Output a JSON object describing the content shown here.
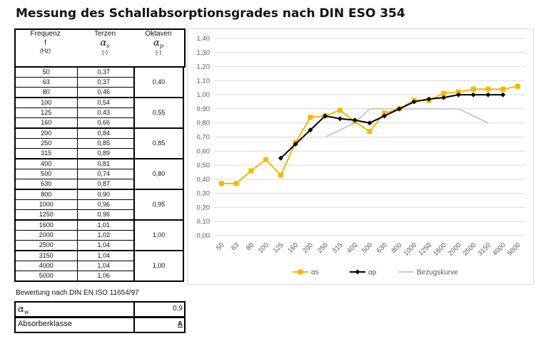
{
  "title": "Messung des Schallabsorptionsgrades nach DIN ESO 354",
  "table": {
    "headers": {
      "col1": [
        "Frequenz",
        "f",
        "(Hz)"
      ],
      "col2": [
        "Terzen",
        "α",
        "s",
        "(-)"
      ],
      "col3": [
        "Oktaven",
        "α",
        "p",
        "(-)"
      ]
    },
    "groups": [
      {
        "rows": [
          [
            "50",
            "0,37"
          ],
          [
            "63",
            "0,37"
          ],
          [
            "80",
            "0,46"
          ]
        ],
        "octave": "0,40"
      },
      {
        "rows": [
          [
            "100",
            "0,54"
          ],
          [
            "125",
            "0,43"
          ],
          [
            "160",
            "0,66"
          ]
        ],
        "octave": "0,55"
      },
      {
        "rows": [
          [
            "200",
            "0,84"
          ],
          [
            "250",
            "0,85"
          ],
          [
            "315",
            "0,89"
          ]
        ],
        "octave": "0,85"
      },
      {
        "rows": [
          [
            "400",
            "0,81"
          ],
          [
            "500",
            "0,74"
          ],
          [
            "630",
            "0,87"
          ]
        ],
        "octave": "0,80"
      },
      {
        "rows": [
          [
            "800",
            "0,90"
          ],
          [
            "1000",
            "0,96"
          ],
          [
            "1250",
            "0,96"
          ]
        ],
        "octave": "0,95"
      },
      {
        "rows": [
          [
            "1600",
            "1,01"
          ],
          [
            "2000",
            "1,02"
          ],
          [
            "2500",
            "1,04"
          ]
        ],
        "octave": "1,00"
      },
      {
        "rows": [
          [
            "3150",
            "1,04"
          ],
          [
            "4000",
            "1,04"
          ],
          [
            "5000",
            "1,06"
          ]
        ],
        "octave": "1,00"
      }
    ]
  },
  "evaluation": {
    "note": "Bewertung nach DIN EN ISO 11654/97",
    "alpha_w_symbol": "α",
    "alpha_w_sub": "w",
    "alpha_w_value": "0,9",
    "class_label": "Absorberklasse",
    "class_value": "A"
  },
  "chart_data": {
    "type": "line",
    "categories": [
      "50",
      "63",
      "80",
      "100",
      "125",
      "160",
      "200",
      "250",
      "315",
      "400",
      "500",
      "630",
      "800",
      "1000",
      "1250",
      "1600",
      "2000",
      "2500",
      "3150",
      "4000",
      "5000"
    ],
    "ylim": [
      0,
      1.4
    ],
    "yticks": [
      "0,00",
      "0,10",
      "0,20",
      "0,30",
      "0,40",
      "0,50",
      "0,60",
      "0,70",
      "0,80",
      "0,90",
      "1,00",
      "1,10",
      "1,20",
      "1,30",
      "1,40"
    ],
    "grid": true,
    "legend": "bottom",
    "series": [
      {
        "name": "αs",
        "color": "#f5b800",
        "marker": "square",
        "values": [
          0.37,
          0.37,
          0.46,
          0.54,
          0.43,
          0.66,
          0.84,
          0.85,
          0.89,
          0.81,
          0.74,
          0.87,
          0.9,
          0.96,
          0.96,
          1.01,
          1.02,
          1.04,
          1.04,
          1.04,
          1.06
        ]
      },
      {
        "name": "αp",
        "color": "#000000",
        "marker": "diamond",
        "values": [
          null,
          null,
          null,
          null,
          0.55,
          0.65,
          0.75,
          0.85,
          0.83,
          0.82,
          0.8,
          0.85,
          0.9,
          0.95,
          0.97,
          0.98,
          1.0,
          1.0,
          1.0,
          1.0,
          null
        ]
      },
      {
        "name": "Bezugskurve",
        "color": "#cccccc",
        "marker": "none",
        "values": [
          null,
          null,
          null,
          null,
          null,
          null,
          null,
          0.7,
          0.75,
          0.8,
          0.9,
          0.9,
          0.9,
          0.9,
          0.9,
          0.9,
          0.9,
          0.85,
          0.8,
          null,
          null
        ]
      }
    ]
  }
}
